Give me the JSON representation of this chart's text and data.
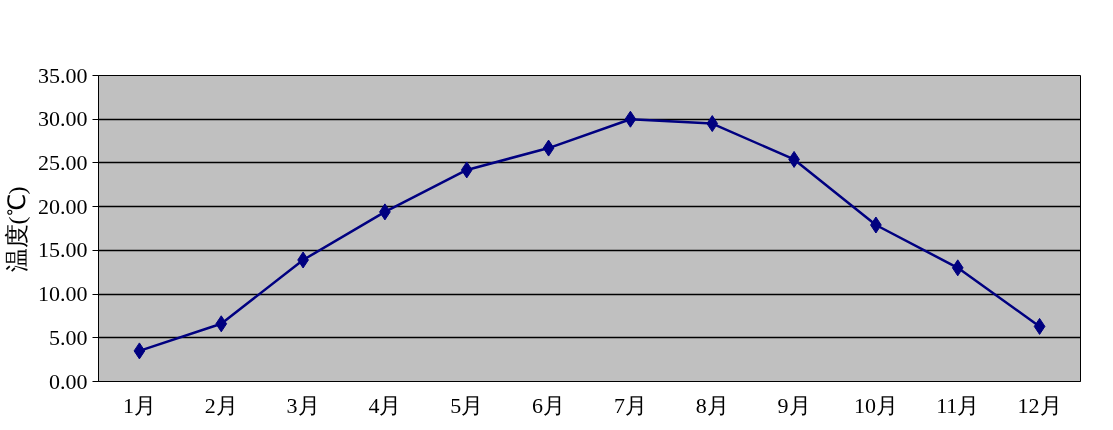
{
  "chart_data": {
    "type": "line",
    "ylabel": "温度(℃)",
    "categories": [
      "1月",
      "2月",
      "3月",
      "4月",
      "5月",
      "6月",
      "7月",
      "8月",
      "9月",
      "10月",
      "11月",
      "12月"
    ],
    "series": [
      {
        "color": "#000080",
        "values": [
          3.5,
          6.6,
          13.9,
          19.4,
          24.2,
          26.7,
          30.0,
          29.5,
          25.4,
          17.9,
          13.0,
          6.3
        ]
      }
    ],
    "ylim": [
      0,
      35
    ],
    "yticks": [
      {
        "value": 0,
        "label": "0.00"
      },
      {
        "value": 5,
        "label": "5.00"
      },
      {
        "value": 10,
        "label": "10.00"
      },
      {
        "value": 15,
        "label": "15.00"
      },
      {
        "value": 20,
        "label": "20.00"
      },
      {
        "value": 25,
        "label": "25.00"
      },
      {
        "value": 30,
        "label": "30.00"
      },
      {
        "value": 35,
        "label": "35.00"
      }
    ],
    "grid": "y",
    "marker": "diamond",
    "line_style": "solid"
  }
}
